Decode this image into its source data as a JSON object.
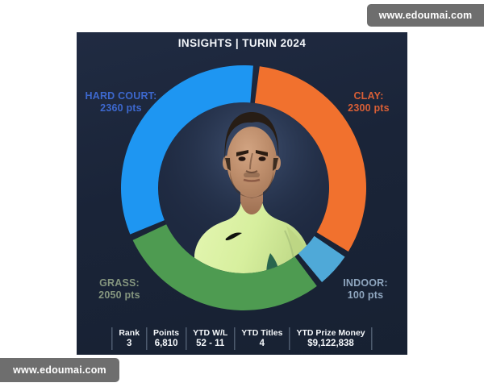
{
  "watermarks": {
    "top_right": "www.edoumai.com",
    "bottom_left": "www.edoumai.com"
  },
  "header": {
    "title": "INSIGHTS | TURIN 2024"
  },
  "chart_data": {
    "type": "pie",
    "donut": true,
    "title": "INSIGHTS | TURIN 2024",
    "total_points": 6810,
    "legend_position": "around-chart",
    "start_angle_deg": 6,
    "gap_deg": 3,
    "min_segment_deg": 16,
    "segments": [
      {
        "id": "clay",
        "label": "CLAY",
        "value": 2300,
        "color": "#F1712E"
      },
      {
        "id": "indoor",
        "label": "INDOOR",
        "value": 100,
        "color": "#4FA9D8"
      },
      {
        "id": "grass",
        "label": "GRASS",
        "value": 2050,
        "color": "#4E9B51"
      },
      {
        "id": "hard-court",
        "label": "HARD COURT",
        "value": 2360,
        "color": "#1E96F2"
      }
    ],
    "center_image": "player-portrait"
  },
  "labels": {
    "hard": {
      "title": "HARD COURT:",
      "value": "2360 pts",
      "color": "#3D68CE"
    },
    "clay": {
      "title": "CLAY:",
      "value": "2300 pts",
      "color": "#D95F36"
    },
    "grass": {
      "title": "GRASS:",
      "value": "2050 pts",
      "color": "#84957E"
    },
    "indoor": {
      "title": "INDOOR:",
      "value": "100 pts",
      "color": "#8FA6BF"
    }
  },
  "table": {
    "columns": [
      {
        "header": "Rank",
        "value": "3"
      },
      {
        "header": "Points",
        "value": "6,810"
      },
      {
        "header": "YTD W/L",
        "value": "52 - 11"
      },
      {
        "header": "YTD Titles",
        "value": "4"
      },
      {
        "header": "YTD Prize Money",
        "value": "$9,122,838"
      }
    ]
  }
}
